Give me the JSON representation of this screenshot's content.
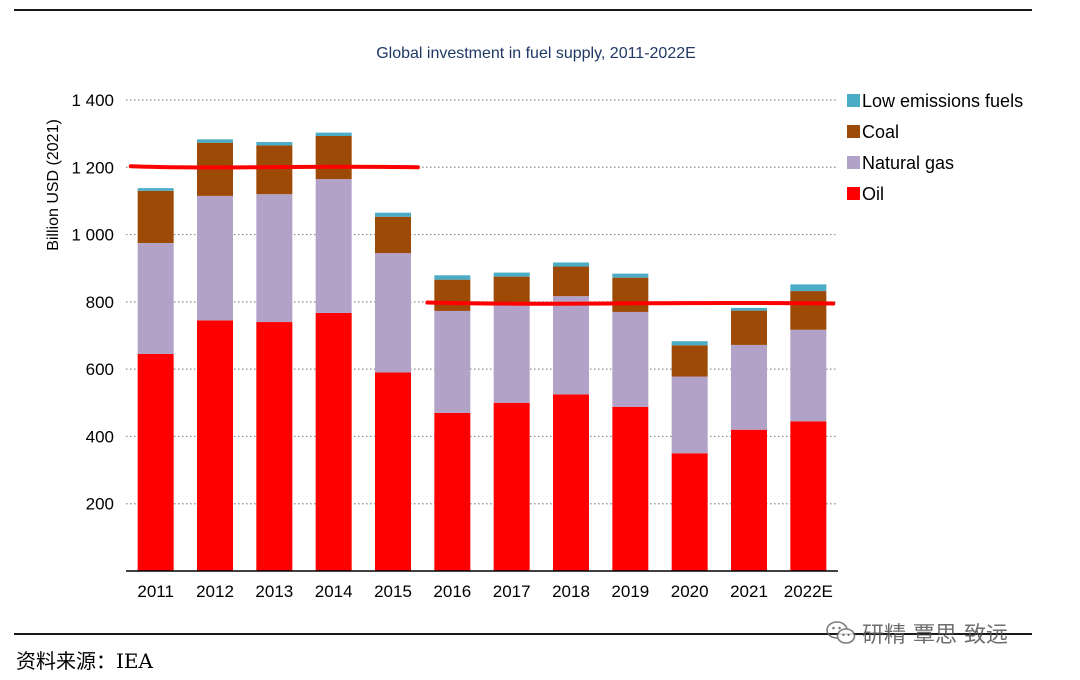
{
  "chart_data": {
    "type": "bar",
    "stacked": true,
    "title": "Global investment in fuel supply, 2011-2022E",
    "ylabel": "Billion USD (2021)",
    "xlabel": "",
    "categories": [
      "2011",
      "2012",
      "2013",
      "2014",
      "2015",
      "2016",
      "2017",
      "2018",
      "2019",
      "2020",
      "2021",
      "2022E"
    ],
    "ylim": [
      0,
      1400
    ],
    "yticks": [
      200,
      400,
      600,
      800,
      1000,
      1200,
      1400
    ],
    "ytick_labels": [
      "200",
      "400",
      "600",
      "800",
      "1 000",
      "1 200",
      "1 400"
    ],
    "grid": "horizontal dotted",
    "legend_position": "right",
    "series": [
      {
        "name": "Oil",
        "color": "#ff0000",
        "values": [
          645,
          745,
          740,
          767,
          590,
          470,
          500,
          525,
          488,
          350,
          420,
          445
        ]
      },
      {
        "name": "Natural gas",
        "color": "#b3a2c7",
        "values": [
          330,
          370,
          380,
          398,
          355,
          303,
          290,
          292,
          282,
          228,
          252,
          272
        ]
      },
      {
        "name": "Coal",
        "color": "#9c4a06",
        "values": [
          155,
          158,
          145,
          128,
          108,
          93,
          85,
          88,
          102,
          93,
          102,
          115
        ]
      },
      {
        "name": "Low emissions fuels",
        "color": "#4bacc6",
        "values": [
          8,
          10,
          10,
          10,
          12,
          13,
          12,
          12,
          12,
          12,
          8,
          20
        ]
      }
    ],
    "legend_order": [
      "Low emissions fuels",
      "Coal",
      "Natural gas",
      "Oil"
    ],
    "annotations": [
      {
        "kind": "hand-drawn line",
        "color": "#ff0000",
        "from": "2011",
        "to": "2015",
        "y": 1200
      },
      {
        "kind": "hand-drawn line",
        "color": "#ff0000",
        "from": "2016",
        "to": "2022E",
        "y": 795
      }
    ]
  },
  "source": "资料来源：IEA",
  "watermark": "研精 覃思 致远",
  "watermark_icon": "wechat-icon"
}
